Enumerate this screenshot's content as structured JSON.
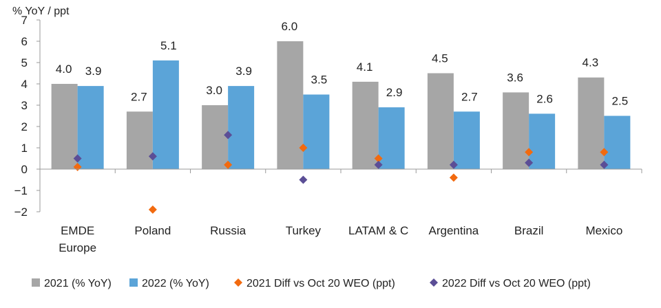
{
  "chart_data": {
    "type": "bar",
    "ylabel": "% YoY / ppt",
    "ylim": [
      -2,
      7
    ],
    "yticks": [
      -2,
      -1,
      0,
      1,
      2,
      3,
      4,
      5,
      6,
      7
    ],
    "categories": [
      "EMDE Europe",
      "Poland",
      "Russia",
      "Turkey",
      "LATAM & C",
      "Argentina",
      "Brazil",
      "Mexico"
    ],
    "category_lines": [
      [
        "EMDE",
        "Europe"
      ],
      [
        "Poland"
      ],
      [
        "Russia"
      ],
      [
        "Turkey"
      ],
      [
        "LATAM & C"
      ],
      [
        "Argentina"
      ],
      [
        "Brazil"
      ],
      [
        "Mexico"
      ]
    ],
    "series": [
      {
        "name": "2021 (% YoY)",
        "kind": "bar",
        "color": "#a6a6a6",
        "values": [
          4.0,
          2.7,
          3.0,
          6.0,
          4.1,
          4.5,
          3.6,
          4.3
        ],
        "labels": [
          "4.0",
          "2.7",
          "3.0",
          "6.0",
          "4.1",
          "4.5",
          "3.6",
          "4.3"
        ]
      },
      {
        "name": "2022 (% YoY)",
        "kind": "bar",
        "color": "#5ba4d8",
        "values": [
          3.9,
          5.1,
          3.9,
          3.5,
          2.9,
          2.7,
          2.6,
          2.5
        ],
        "labels": [
          "3.9",
          "5.1",
          "3.9",
          "3.5",
          "2.9",
          "2.7",
          "2.6",
          "2.5"
        ]
      },
      {
        "name": "2021 Diff vs Oct 20 WEO (ppt)",
        "kind": "marker",
        "color": "#f26a0f",
        "values": [
          0.1,
          -1.9,
          0.2,
          1.0,
          0.5,
          -0.4,
          0.8,
          0.8
        ]
      },
      {
        "name": "2022 Diff vs Oct 20 WEO (ppt)",
        "kind": "marker",
        "color": "#5b4e96",
        "values": [
          0.5,
          0.6,
          1.6,
          -0.5,
          0.2,
          0.2,
          0.3,
          0.2
        ]
      }
    ],
    "grid": false,
    "legend": "bottom"
  }
}
